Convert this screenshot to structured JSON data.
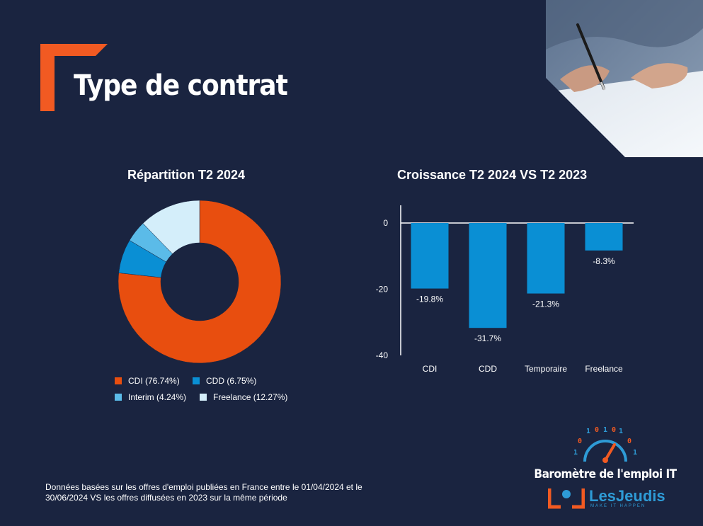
{
  "page": {
    "title": "Type de contrat",
    "footnote": "Données basées sur les offres d'emploi publiées en France entre le 01/04/2024 et le 30/06/2024 VS les offres diffusées en 2023 sur la même période"
  },
  "brand": {
    "tagline": "Baromètre de l'emploi IT",
    "name": "LesJeudis",
    "slogan": "MAKE IT HAPPEN",
    "accent": "#f15a22",
    "blue": "#2e9bd6"
  },
  "icons": [
    "corner-bracket-icon",
    "speedometer-icon",
    "binary-digits-icon",
    "lesjeudis-logo-icon"
  ],
  "chart_data": [
    {
      "type": "pie",
      "donut": true,
      "title": "Répartition T2 2024",
      "legend_position": "bottom",
      "slices": [
        {
          "label": "CDI (76.74%)",
          "value": 76.74,
          "color": "#e84e0f"
        },
        {
          "label": "CDD (6.75%)",
          "value": 6.75,
          "color": "#0a8fd4"
        },
        {
          "label": "Interim (4.24%)",
          "value": 4.24,
          "color": "#5bbbe8"
        },
        {
          "label": "Freelance (12.27%)",
          "value": 12.27,
          "color": "#d4eefa"
        }
      ]
    },
    {
      "type": "bar",
      "title": "Croissance T2 2024  VS T2 2023",
      "categories": [
        "CDI",
        "CDD",
        "Temporaire",
        "Freelance"
      ],
      "values": [
        -19.8,
        -31.7,
        -21.3,
        -8.3
      ],
      "data_labels": [
        "-19.8%",
        "-31.7%",
        "-21.3%",
        "-8.3%"
      ],
      "yticks": [
        0,
        -20,
        -40
      ],
      "ylim": [
        -40,
        5
      ],
      "color": "#0a8fd4",
      "grid": false
    }
  ]
}
